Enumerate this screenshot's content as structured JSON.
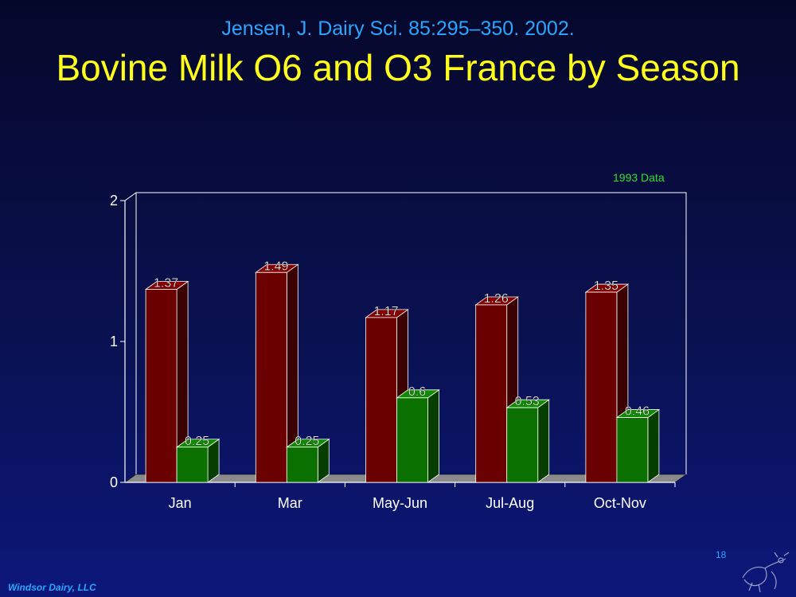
{
  "citation": "Jensen, J. Dairy Sci. 85:295–350. 2002.",
  "title": "Bovine Milk O6 and O3 France by Season",
  "note": "1993 Data",
  "page_number": "18",
  "footer": "Windsor Dairy, LLC",
  "colors": {
    "series_o6": "#6b0000",
    "series_o3": "#0a7000",
    "citation": "#2aa6ff",
    "title": "#ffff1a",
    "note": "#2ee02e"
  },
  "chart_data": {
    "type": "bar",
    "categories": [
      "Jan",
      "Mar",
      "May-Jun",
      "Jul-Aug",
      "Oct-Nov"
    ],
    "series": [
      {
        "values": [
          1.37,
          1.49,
          1.17,
          1.26,
          1.35
        ]
      },
      {
        "values": [
          0.25,
          0.25,
          0.6,
          0.53,
          0.46
        ]
      }
    ],
    "data_labels": [
      [
        "1.37",
        "1.49",
        "1.17",
        "1.26",
        "1.35"
      ],
      [
        "0.25",
        "0.25",
        "0.6",
        "0.53",
        "0.46"
      ]
    ],
    "yticks": [
      "0",
      "1",
      "2"
    ],
    "ylim": [
      0,
      2
    ],
    "legend": false,
    "grid": false,
    "three_d": true
  }
}
